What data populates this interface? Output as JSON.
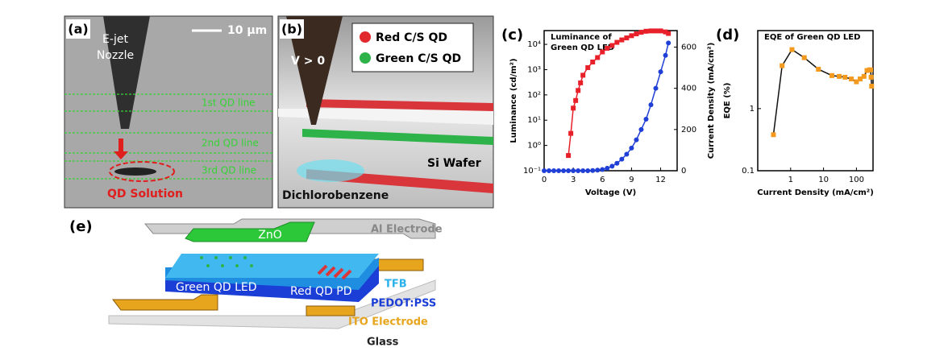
{
  "panel_a": {
    "label": "(a)",
    "scale_bar": "10 μm",
    "nozzle": [
      "E-jet",
      "Nozzle"
    ],
    "lines": [
      "1st QD line",
      "2nd QD line",
      "3rd QD line"
    ],
    "solution": "QD Solution"
  },
  "panel_b": {
    "label": "(b)",
    "voltage": "V > 0",
    "legend": [
      "Red C/S QD",
      "Green C/S QD"
    ],
    "wafer": "Si Wafer",
    "solvent": "Dichlorobenzene"
  },
  "panel_e": {
    "label": "(e)",
    "layers": {
      "zno": "ZnO",
      "al": "Al Electrode",
      "tfb": "TFB",
      "pedot": "PEDOT:PSS",
      "ito": "ITO Electrode",
      "glass": "Glass"
    },
    "devices": [
      "Green QD LED",
      "Red QD PD"
    ]
  },
  "chart_data": [
    {
      "type": "line",
      "panel_label": "(c)",
      "title": [
        "Luminance of",
        "Green QD LED"
      ],
      "x_label": "Voltage (V)",
      "y_label": "Luminance (cd/m²)",
      "y2_label": "Current Density (mA/cm²)",
      "xlim": [
        0,
        13.7
      ],
      "xticks": [
        0,
        3,
        6,
        9,
        12
      ],
      "ylim": [
        0.1,
        35000
      ],
      "ylog": true,
      "yticks": [
        {
          "value": 0.1,
          "label": "10⁻¹"
        },
        {
          "value": 1,
          "label": "10⁰"
        },
        {
          "value": 10,
          "label": "10¹"
        },
        {
          "value": 100,
          "label": "10²"
        },
        {
          "value": 1000,
          "label": "10³"
        },
        {
          "value": 10000,
          "label": "10⁴"
        }
      ],
      "y2lim": [
        0,
        680
      ],
      "y2ticks": [
        0,
        200,
        400,
        600
      ],
      "series": [
        {
          "color": "#e8202a",
          "line_color": "#e8202a",
          "marker": "square",
          "x": [
            2.5,
            2.75,
            3,
            3.25,
            3.5,
            3.75,
            4,
            4.5,
            5,
            5.5,
            6,
            6.5,
            7,
            7.5,
            8,
            8.5,
            9,
            9.5,
            10,
            10.5,
            11,
            11.5,
            12,
            12.5,
            12.8
          ],
          "values": [
            0.4,
            3,
            30,
            60,
            150,
            300,
            600,
            1200,
            2000,
            3000,
            5000,
            7000,
            9000,
            12000,
            15000,
            18000,
            22000,
            26000,
            30000,
            33000,
            34000,
            34000,
            34000,
            31000,
            27000
          ]
        },
        {
          "color": "#1f3fd6",
          "line_color": "#1f3fd6",
          "marker": "circle",
          "axis": "y2",
          "x": [
            0,
            0.5,
            1,
            1.5,
            2,
            2.5,
            3,
            3.5,
            4,
            4.5,
            5,
            5.5,
            6,
            6.5,
            7,
            7.5,
            8,
            8.5,
            9,
            9.5,
            10,
            10.5,
            11,
            11.5,
            12,
            12.5,
            12.8
          ],
          "values": [
            0,
            0,
            0,
            0,
            0,
            0,
            0,
            0,
            0,
            0,
            1,
            3,
            6,
            12,
            22,
            36,
            56,
            80,
            110,
            150,
            200,
            250,
            320,
            400,
            480,
            560,
            620
          ]
        }
      ]
    },
    {
      "type": "line",
      "panel_label": "(d)",
      "title": [
        "EQE of Green QD LED"
      ],
      "x_label": "Current Density (mA/cm²)",
      "y_label": "EQE (%)",
      "xlim": [
        0.1,
        320
      ],
      "xlog": true,
      "xticks": [
        1,
        10,
        100
      ],
      "ylim": [
        0.1,
        18
      ],
      "ylog": true,
      "yticks": [
        0.1,
        1
      ],
      "series": [
        {
          "color": "#f39a1e",
          "line_color": "#111111",
          "marker": "square",
          "x": [
            0.3,
            0.55,
            1.1,
            2.6,
            7,
            18,
            30,
            45,
            70,
            100,
            130,
            170,
            210,
            250,
            270,
            280,
            290
          ],
          "values": [
            0.38,
            4.9,
            8.9,
            6.6,
            4.3,
            3.4,
            3.3,
            3.2,
            3.0,
            2.7,
            3.0,
            3.3,
            4.1,
            4.2,
            4.2,
            3.2,
            2.3
          ]
        }
      ]
    }
  ]
}
